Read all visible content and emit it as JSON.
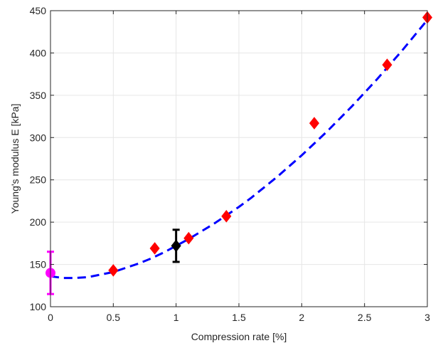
{
  "chart_data": {
    "type": "scatter",
    "title": "",
    "xlabel": "Compression rate [%]",
    "ylabel": "Young's modulus E [kPa]",
    "xlim": [
      0,
      3
    ],
    "ylim": [
      100,
      450
    ],
    "grid": true,
    "x_ticks": [
      0,
      0.5,
      1,
      1.5,
      2,
      2.5,
      3
    ],
    "x_tick_labels": [
      "0",
      "0.5",
      "1",
      "1.5",
      "2",
      "2.5",
      "3"
    ],
    "y_ticks": [
      100,
      150,
      200,
      250,
      300,
      350,
      400,
      450
    ],
    "y_tick_labels": [
      "100",
      "150",
      "200",
      "250",
      "300",
      "350",
      "400",
      "450"
    ],
    "series": [
      {
        "marker": "diamond",
        "color": "#ff0000",
        "points": [
          {
            "x": 0.5,
            "y": 143
          },
          {
            "x": 0.83,
            "y": 169
          },
          {
            "x": 1.1,
            "y": 181
          },
          {
            "x": 1.4,
            "y": 207
          },
          {
            "x": 2.1,
            "y": 317
          },
          {
            "x": 2.68,
            "y": 386
          },
          {
            "x": 3.0,
            "y": 442
          }
        ]
      },
      {
        "marker": "diamond",
        "color": "#000000",
        "points": [
          {
            "x": 1.0,
            "y": 172,
            "err_low": 153,
            "err_high": 191
          }
        ]
      },
      {
        "marker": "circle",
        "color": "#ff00ff",
        "points": [
          {
            "x": 0.0,
            "y": 140,
            "err_low": 115,
            "err_high": 165
          }
        ]
      },
      {
        "style": "dashed-line",
        "color": "#0000ff",
        "curve": [
          {
            "x": 0.0,
            "y": 136
          },
          {
            "x": 0.1,
            "y": 134
          },
          {
            "x": 0.2,
            "y": 134
          },
          {
            "x": 0.3,
            "y": 135
          },
          {
            "x": 0.4,
            "y": 138
          },
          {
            "x": 0.5,
            "y": 141
          },
          {
            "x": 0.6,
            "y": 146
          },
          {
            "x": 0.7,
            "y": 151
          },
          {
            "x": 0.8,
            "y": 157
          },
          {
            "x": 0.9,
            "y": 164
          },
          {
            "x": 1.0,
            "y": 172
          },
          {
            "x": 1.1,
            "y": 180
          },
          {
            "x": 1.2,
            "y": 189
          },
          {
            "x": 1.3,
            "y": 198
          },
          {
            "x": 1.4,
            "y": 208
          },
          {
            "x": 1.5,
            "y": 218
          },
          {
            "x": 1.6,
            "y": 229
          },
          {
            "x": 1.7,
            "y": 241
          },
          {
            "x": 1.8,
            "y": 253
          },
          {
            "x": 1.9,
            "y": 266
          },
          {
            "x": 2.0,
            "y": 279
          },
          {
            "x": 2.1,
            "y": 293
          },
          {
            "x": 2.2,
            "y": 307
          },
          {
            "x": 2.3,
            "y": 322
          },
          {
            "x": 2.4,
            "y": 337
          },
          {
            "x": 2.5,
            "y": 353
          },
          {
            "x": 2.6,
            "y": 369
          },
          {
            "x": 2.7,
            "y": 386
          },
          {
            "x": 2.8,
            "y": 403
          },
          {
            "x": 2.9,
            "y": 421
          },
          {
            "x": 3.0,
            "y": 439
          }
        ]
      }
    ]
  }
}
